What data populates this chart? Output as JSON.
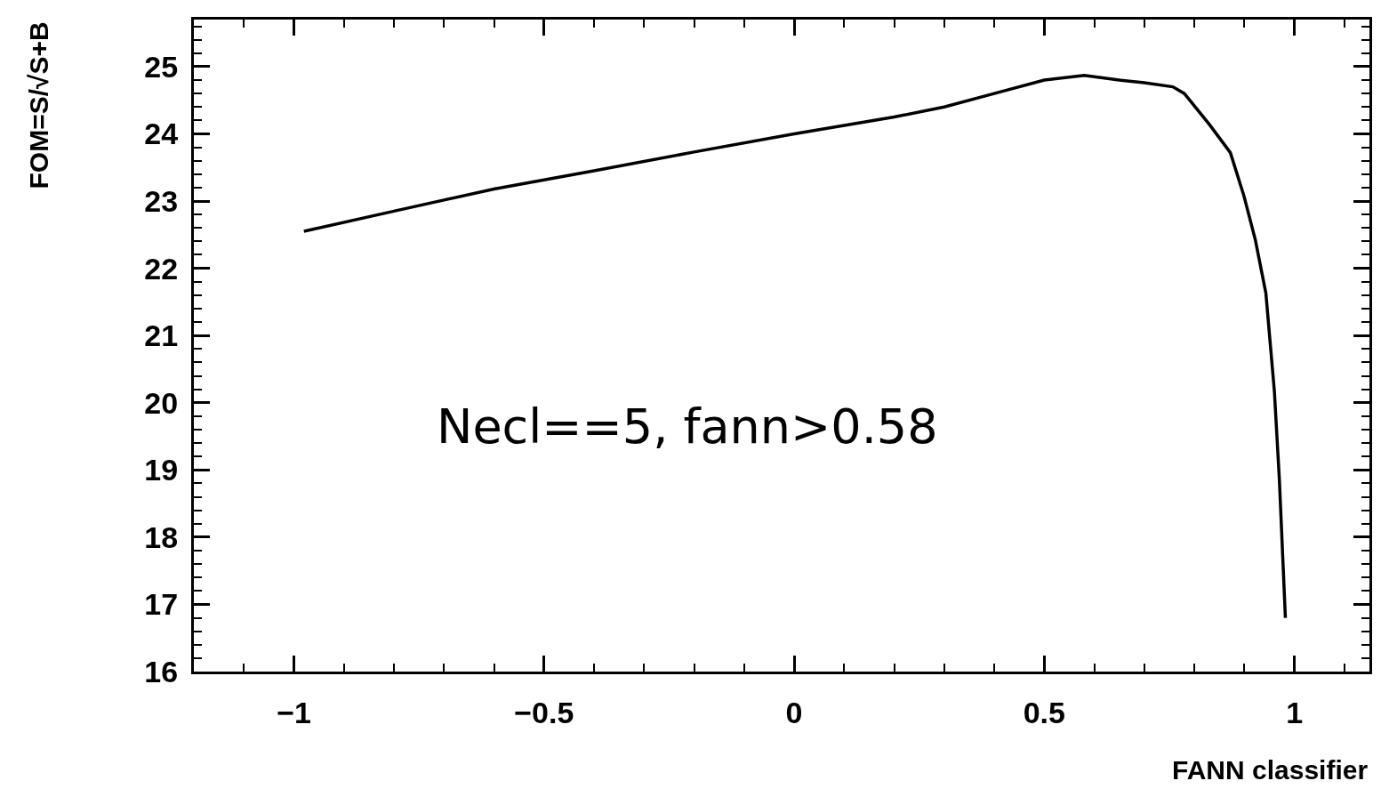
{
  "chart_data": {
    "type": "line",
    "xlabel": "FANN classifier",
    "ylabel": "FOM=S/√S+B",
    "annotations": [
      "Necl==5, fann>0.58"
    ],
    "x": [
      -0.98,
      -0.8,
      -0.6,
      -0.4,
      -0.2,
      0,
      0.2,
      0.3,
      0.4,
      0.5,
      0.58,
      0.65,
      0.7,
      0.757,
      0.78,
      0.83,
      0.872,
      0.899,
      0.922,
      0.943,
      0.96,
      0.97,
      0.982
    ],
    "series": [
      {
        "color": "#000000",
        "values": [
          22.55,
          22.85,
          23.18,
          23.45,
          23.73,
          24.0,
          24.25,
          24.4,
          24.6,
          24.8,
          24.87,
          24.8,
          24.76,
          24.7,
          24.6,
          24.14,
          23.72,
          23.08,
          22.42,
          21.63,
          20.17,
          18.85,
          16.8
        ]
      }
    ],
    "xlim": [
      -1.2,
      1.15
    ],
    "xticks": [
      {
        "value": -1,
        "label": "−1"
      },
      {
        "value": -0.5,
        "label": "−0.5"
      },
      0,
      0.5,
      1
    ],
    "ylim": [
      16,
      25.7
    ],
    "yticks": [
      16,
      17,
      18,
      19,
      20,
      21,
      22,
      23,
      24,
      25
    ],
    "grid": false,
    "marker": "none",
    "line_style": "solid"
  }
}
